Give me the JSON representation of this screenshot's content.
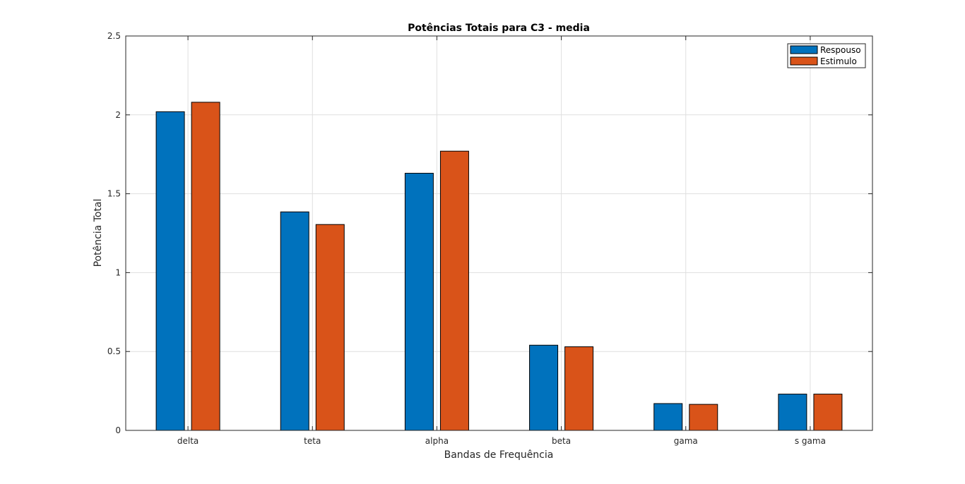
{
  "chart_data": {
    "type": "bar",
    "title": "Potências Totais para C3 - media",
    "xlabel": "Bandas de Frequência",
    "ylabel": "Potência Total",
    "categories": [
      "delta",
      "teta",
      "alpha",
      "beta",
      "gama",
      "s gama"
    ],
    "series": [
      {
        "name": "Respouso",
        "color": "#0072bd",
        "values": [
          2.02,
          1.385,
          1.63,
          0.54,
          0.17,
          0.23
        ]
      },
      {
        "name": "Estimulo",
        "color": "#d95319",
        "values": [
          2.08,
          1.305,
          1.77,
          0.53,
          0.165,
          0.23
        ]
      }
    ],
    "ylim": [
      0,
      2.5
    ],
    "yticks": [
      0,
      0.5,
      1,
      1.5,
      2,
      2.5
    ],
    "ytick_labels": [
      "0",
      "0.5",
      "1",
      "1.5",
      "2",
      "2.5"
    ],
    "grid": true,
    "legend_position": "top-right"
  }
}
